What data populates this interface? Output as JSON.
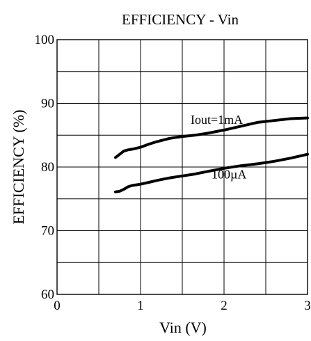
{
  "chart_data": {
    "type": "line",
    "title": "EFFICIENCY - Vin",
    "xlabel": "Vin (V)",
    "ylabel": "EFFICIENCY (%)",
    "xlim": [
      0,
      3
    ],
    "ylim": [
      60,
      100
    ],
    "x_ticks": [
      0,
      1,
      2,
      3
    ],
    "y_ticks": [
      60,
      70,
      80,
      90,
      100
    ],
    "x_tick_labels": [
      "0",
      "1",
      "2",
      "3"
    ],
    "y_tick_labels": [
      "60",
      "70",
      "80",
      "90",
      "100"
    ],
    "x_grid_step": 0.5,
    "y_grid_step": 5,
    "grid": true,
    "line_color": "#000000",
    "series": [
      {
        "name": "Iout=1mA",
        "x": [
          0.7,
          0.75,
          0.8,
          0.85,
          0.9,
          1.0,
          1.1,
          1.2,
          1.35,
          1.5,
          1.65,
          1.8,
          2.0,
          2.2,
          2.4,
          2.6,
          2.8,
          3.0
        ],
        "y": [
          81.5,
          82.0,
          82.5,
          82.7,
          82.8,
          83.1,
          83.6,
          84.0,
          84.5,
          84.8,
          85.0,
          85.3,
          85.8,
          86.4,
          87.0,
          87.3,
          87.6,
          87.7
        ]
      },
      {
        "name": "100µA",
        "x": [
          0.7,
          0.75,
          0.8,
          0.85,
          0.9,
          0.95,
          1.0,
          1.1,
          1.2,
          1.35,
          1.5,
          1.65,
          1.8,
          2.0,
          2.2,
          2.4,
          2.6,
          2.8,
          3.0
        ],
        "y": [
          76.1,
          76.2,
          76.5,
          76.9,
          77.1,
          77.2,
          77.3,
          77.6,
          77.9,
          78.3,
          78.6,
          78.9,
          79.3,
          79.8,
          80.2,
          80.5,
          80.9,
          81.4,
          82.0
        ]
      }
    ],
    "annotations": [
      {
        "text": "Iout=1mA",
        "x": 1.6,
        "y": 86.8
      },
      {
        "text": "100µA",
        "x": 1.85,
        "y": 78.2
      }
    ]
  }
}
